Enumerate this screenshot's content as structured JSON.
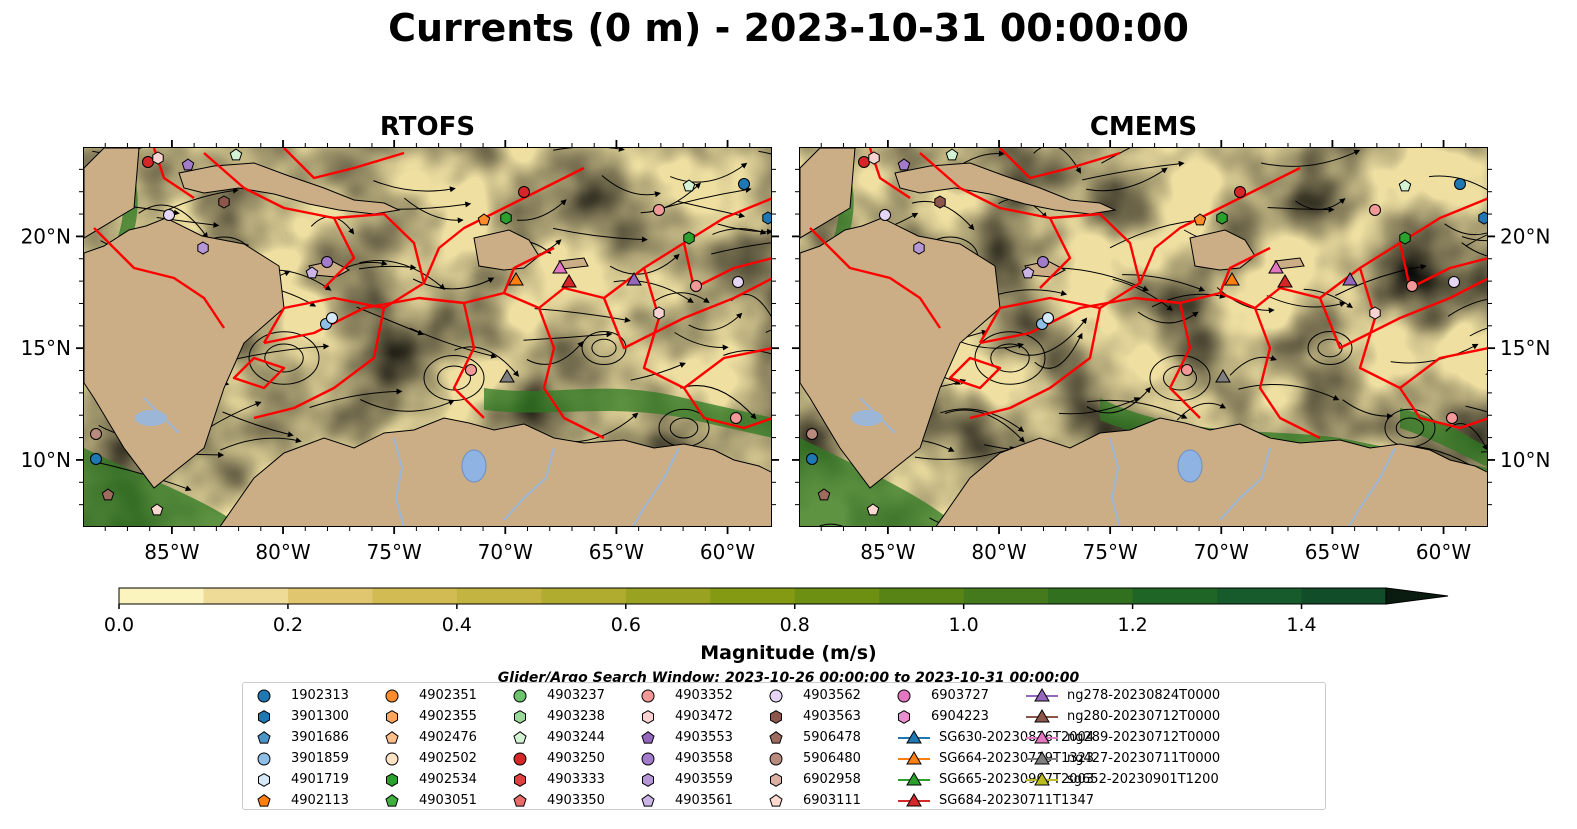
{
  "title": "Currents (0 m) - 2023-10-31 00:00:00",
  "chart_data": [
    {
      "type": "map",
      "title": "RTOFS",
      "variable": "Surface current magnitude with streamlines",
      "lon_range": [
        -89,
        -58
      ],
      "lat_range": [
        7,
        24
      ],
      "lon_ticks": [
        "85°W",
        "80°W",
        "75°W",
        "70°W",
        "65°W",
        "60°W"
      ],
      "lon_tick_values": [
        -85,
        -80,
        -75,
        -70,
        -65,
        -60
      ],
      "lat_ticks": [
        "20°N",
        "15°N",
        "10°N"
      ],
      "lat_tick_values": [
        20,
        15,
        10
      ]
    },
    {
      "type": "map",
      "title": "CMEMS",
      "variable": "Surface current magnitude with streamlines",
      "lon_range": [
        -89,
        -58
      ],
      "lat_range": [
        7,
        24
      ],
      "lon_ticks": [
        "85°W",
        "80°W",
        "75°W",
        "70°W",
        "65°W",
        "60°W"
      ],
      "lon_tick_values": [
        -85,
        -80,
        -75,
        -70,
        -65,
        -60
      ],
      "lat_ticks": [
        "20°N",
        "15°N",
        "10°N"
      ],
      "lat_tick_values": [
        20,
        15,
        10
      ]
    }
  ],
  "colorbar": {
    "label": "Magnitude (m/s)",
    "range": [
      0.0,
      1.5
    ],
    "extend": "max",
    "ticks": [
      "0.0",
      "0.2",
      "0.4",
      "0.6",
      "0.8",
      "1.0",
      "1.2",
      "1.4"
    ],
    "tick_values": [
      0.0,
      0.2,
      0.4,
      0.6,
      0.8,
      1.0,
      1.2,
      1.4
    ],
    "colors": [
      "#fbf4bf",
      "#eedb98",
      "#dfc66f",
      "#d3bb54",
      "#c3b441",
      "#b0ac30",
      "#9aa221",
      "#849a13",
      "#6d8f12",
      "#588416",
      "#447a1b",
      "#31701f",
      "#1f6526",
      "#175a2b",
      "#104d28",
      "#0e4123",
      "#0d341d",
      "#0c2817",
      "#0a1c10"
    ]
  },
  "search_window": "Glider/Argo Search Window: 2023-10-26 00:00:00 to 2023-10-31 00:00:00",
  "legend": [
    {
      "label": "1902313",
      "marker": "circle",
      "color": "#1f77b4"
    },
    {
      "label": "3901300",
      "marker": "hexagon",
      "color": "#1f77b4"
    },
    {
      "label": "3901686",
      "marker": "pentagon",
      "color": "#4c95c7"
    },
    {
      "label": "3901859",
      "marker": "circle",
      "color": "#8fbfe6"
    },
    {
      "label": "4901719",
      "marker": "hexagon",
      "color": "#d6e9f7"
    },
    {
      "label": "4902113",
      "marker": "pentagon",
      "color": "#ff7f0e"
    },
    {
      "label": "4902351",
      "marker": "circle",
      "color": "#ff8c2a"
    },
    {
      "label": "4902355",
      "marker": "hexagon",
      "color": "#ffa65c"
    },
    {
      "label": "4902476",
      "marker": "pentagon",
      "color": "#ffc08a"
    },
    {
      "label": "4902502",
      "marker": "circle",
      "color": "#ffe3c4"
    },
    {
      "label": "4902534",
      "marker": "hexagon",
      "color": "#2ca02c"
    },
    {
      "label": "4903051",
      "marker": "pentagon",
      "color": "#3fb03f"
    },
    {
      "label": "4903237",
      "marker": "circle",
      "color": "#6bc46b"
    },
    {
      "label": "4903238",
      "marker": "hexagon",
      "color": "#9ad89a"
    },
    {
      "label": "4903244",
      "marker": "pentagon",
      "color": "#d4f2d4"
    },
    {
      "label": "4903250",
      "marker": "circle",
      "color": "#d62728"
    },
    {
      "label": "4903333",
      "marker": "hexagon",
      "color": "#e04040"
    },
    {
      "label": "4903350",
      "marker": "pentagon",
      "color": "#ea6a6a"
    },
    {
      "label": "4903352",
      "marker": "circle",
      "color": "#f29898"
    },
    {
      "label": "4903472",
      "marker": "hexagon",
      "color": "#fbd2d2"
    },
    {
      "label": "4903553",
      "marker": "pentagon",
      "color": "#9467bd"
    },
    {
      "label": "4903558",
      "marker": "circle",
      "color": "#a27ccb"
    },
    {
      "label": "4903559",
      "marker": "hexagon",
      "color": "#b597d8"
    },
    {
      "label": "4903561",
      "marker": "pentagon",
      "color": "#cbb4e6"
    },
    {
      "label": "4903562",
      "marker": "circle",
      "color": "#e6d6f5"
    },
    {
      "label": "4903563",
      "marker": "hexagon",
      "color": "#8c564b"
    },
    {
      "label": "5906478",
      "marker": "pentagon",
      "color": "#9e6b5f"
    },
    {
      "label": "5906480",
      "marker": "circle",
      "color": "#b98a7e"
    },
    {
      "label": "6902958",
      "marker": "hexagon",
      "color": "#dcb0a3"
    },
    {
      "label": "6903111",
      "marker": "pentagon",
      "color": "#fbd8d0"
    },
    {
      "label": "6903727",
      "marker": "circle",
      "color": "#e377c2"
    },
    {
      "label": "6904223",
      "marker": "hexagon",
      "color": "#e98fcf"
    },
    {
      "label": "SG630-20230826T2004",
      "marker": "triangle",
      "color": "#1f77b4"
    },
    {
      "label": "SG664-20230719T1323",
      "marker": "triangle",
      "color": "#ff7f0e"
    },
    {
      "label": "SG665-20230907T2003",
      "marker": "triangle",
      "color": "#2ca02c"
    },
    {
      "label": "SG684-20230711T1347",
      "marker": "triangle",
      "color": "#d62728"
    },
    {
      "label": "ng278-20230824T0000",
      "marker": "triangle",
      "color": "#9467bd"
    },
    {
      "label": "ng280-20230712T0000",
      "marker": "triangle",
      "color": "#8c564b"
    },
    {
      "label": "ng289-20230712T0000",
      "marker": "triangle",
      "color": "#e377c2"
    },
    {
      "label": "ng427-20230711T0000",
      "marker": "triangle",
      "color": "#7f7f7f"
    },
    {
      "label": "sg652-20230901T1200",
      "marker": "triangle",
      "color": "#bcbd22"
    }
  ],
  "colors": {
    "land": "#cbae86",
    "boundary": "#ff0000",
    "river": "#9bb6d6",
    "streamline": "#000000"
  }
}
